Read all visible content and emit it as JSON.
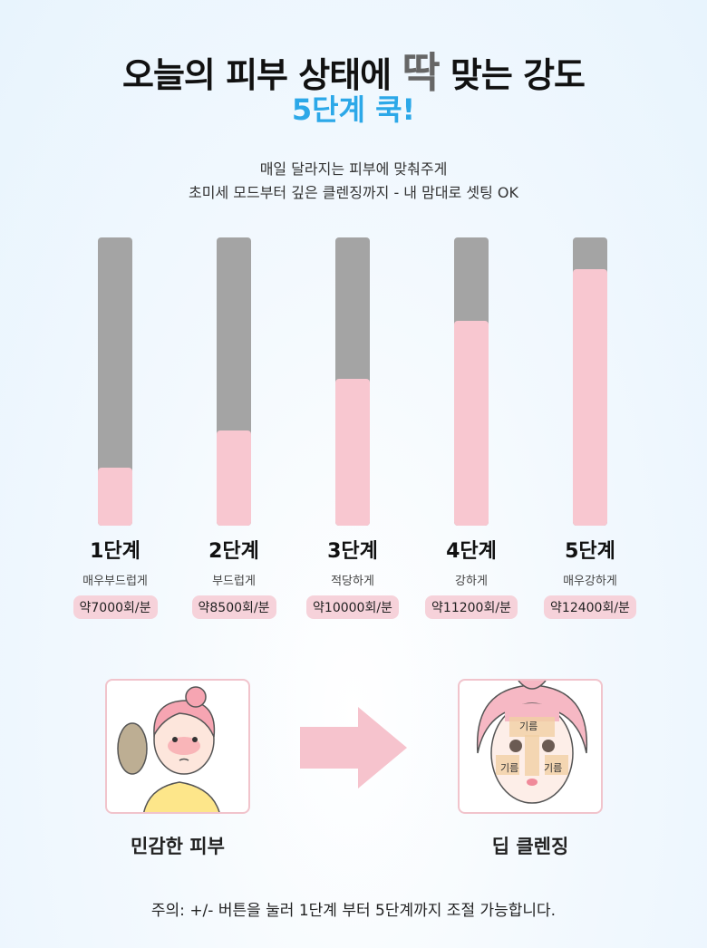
{
  "header": {
    "title_before": "오늘의 피부 상태에 ",
    "title_emphasis": "딱",
    "title_after": " 맞는 강도",
    "subtitle": "5단계 쿡!"
  },
  "description": [
    "매일 달라지는 피부에 맞춰주게",
    "초미세 모드부터 깊은 클렌징까지 - 내 맘대로 셋팅 OK"
  ],
  "colors": {
    "accent": "#2ca8e8",
    "bar_track": "#a4a4a4",
    "bar_fill": "#f8c7d0",
    "badge": "#f6d2da"
  },
  "chart_data": {
    "type": "bar",
    "categories": [
      "1단계",
      "2단계",
      "3단계",
      "4단계",
      "5단계"
    ],
    "labels": [
      "매우부드럽게",
      "부드럽게",
      "적당하게",
      "강하게",
      "매우강하게"
    ],
    "badges": [
      "약7000회/분",
      "약8500회/분",
      "약10000회/분",
      "약11200회/분",
      "약12400회/분"
    ],
    "values": [
      20,
      33,
      51,
      71,
      89
    ],
    "unit": "percent fill",
    "ylim": [
      0,
      100
    ],
    "grid": false
  },
  "comparison": {
    "before_caption": "민감한 피부",
    "after_caption": "딥 클렌징",
    "oil_label": "기름",
    "arrow_icon": "arrow-right-icon"
  },
  "note": "주의: +/- 버튼을 눌러 1단계 부터 5단계까지 조절 가능합니다."
}
